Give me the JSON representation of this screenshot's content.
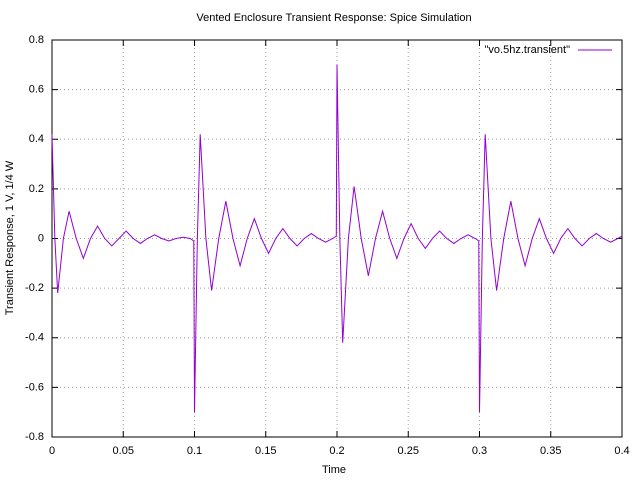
{
  "chart_data": {
    "type": "line",
    "title": "Vented Enclosure Transient Response: Spice Simulation",
    "xlabel": "Time",
    "ylabel": "Transient Response, 1 V, 1/4 W",
    "x": [
      0,
      0.002,
      0.004,
      0.008,
      0.012,
      0.017,
      0.022,
      0.027,
      0.032,
      0.037,
      0.042,
      0.047,
      0.052,
      0.057,
      0.062,
      0.067,
      0.072,
      0.077,
      0.082,
      0.087,
      0.092,
      0.097,
      0.0995,
      0.1,
      0.102,
      0.104,
      0.108,
      0.112,
      0.117,
      0.122,
      0.127,
      0.132,
      0.137,
      0.142,
      0.147,
      0.152,
      0.157,
      0.162,
      0.167,
      0.172,
      0.177,
      0.182,
      0.187,
      0.192,
      0.197,
      0.1995,
      0.2,
      0.202,
      0.204,
      0.208,
      0.212,
      0.217,
      0.222,
      0.227,
      0.232,
      0.237,
      0.242,
      0.247,
      0.252,
      0.257,
      0.262,
      0.267,
      0.272,
      0.277,
      0.282,
      0.287,
      0.292,
      0.297,
      0.2995,
      0.3,
      0.302,
      0.304,
      0.308,
      0.312,
      0.317,
      0.322,
      0.327,
      0.332,
      0.337,
      0.342,
      0.347,
      0.352,
      0.357,
      0.362,
      0.367,
      0.372,
      0.377,
      0.382,
      0.387,
      0.392,
      0.397,
      0.4
    ],
    "series": [
      {
        "name": "\"vo.5hz.transient\"",
        "color": "#9400d3",
        "values": [
          0.42,
          0,
          -0.22,
          0,
          0.11,
          0,
          -0.08,
          0,
          0.05,
          0,
          -0.03,
          0,
          0.03,
          0,
          -0.02,
          0,
          0.015,
          0,
          -0.01,
          0,
          0.005,
          0,
          -0.01,
          -0.7,
          0,
          0.42,
          0,
          -0.21,
          0,
          0.15,
          0,
          -0.11,
          0,
          0.08,
          0,
          -0.06,
          0,
          0.04,
          0,
          -0.03,
          0,
          0.02,
          0,
          -0.015,
          0,
          0.01,
          0.7,
          0,
          -0.42,
          0,
          0.21,
          0,
          -0.15,
          0,
          0.11,
          0,
          -0.08,
          0,
          0.06,
          0,
          -0.04,
          0,
          0.03,
          0,
          -0.02,
          0,
          0.015,
          0,
          -0.01,
          -0.7,
          0,
          0.42,
          0,
          -0.21,
          0,
          0.15,
          0,
          -0.11,
          0,
          0.08,
          0,
          -0.06,
          0,
          0.04,
          0,
          -0.03,
          0,
          0.02,
          0,
          -0.015,
          0,
          0.01
        ]
      }
    ],
    "xlim": [
      0,
      0.4
    ],
    "xticks": [
      0,
      0.05,
      0.1,
      0.15,
      0.2,
      0.25,
      0.3,
      0.35,
      0.4
    ],
    "ylim": [
      -0.8,
      0.8
    ],
    "yticks": [
      -0.8,
      -0.6,
      -0.4,
      -0.2,
      0,
      0.2,
      0.4,
      0.6,
      0.8
    ],
    "grid": true,
    "legend": "top-right"
  }
}
